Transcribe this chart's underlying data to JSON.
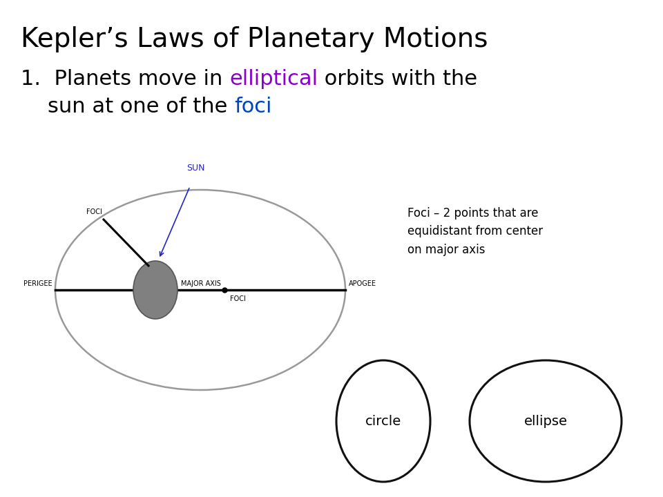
{
  "title": "Kepler’s Laws of Planetary Motions",
  "title_fontsize": 28,
  "title_color": "#000000",
  "bg_color": "#ffffff",
  "subtitle_fontsize": 22,
  "ellipse_color": "#999999",
  "sun_color": "#888888",
  "foci_note": "Foci – 2 points that are\nequidistant from center\non major axis",
  "foci_note_fontsize": 12,
  "sun_label": "SUN",
  "sun_label_color": "#2222CC",
  "small_label_fontsize": 7,
  "circle_label": "circle",
  "circle_label_fontsize": 14,
  "ellipse2_label": "ellipse",
  "ellipse2_label_fontsize": 14,
  "shape_color": "#111111"
}
